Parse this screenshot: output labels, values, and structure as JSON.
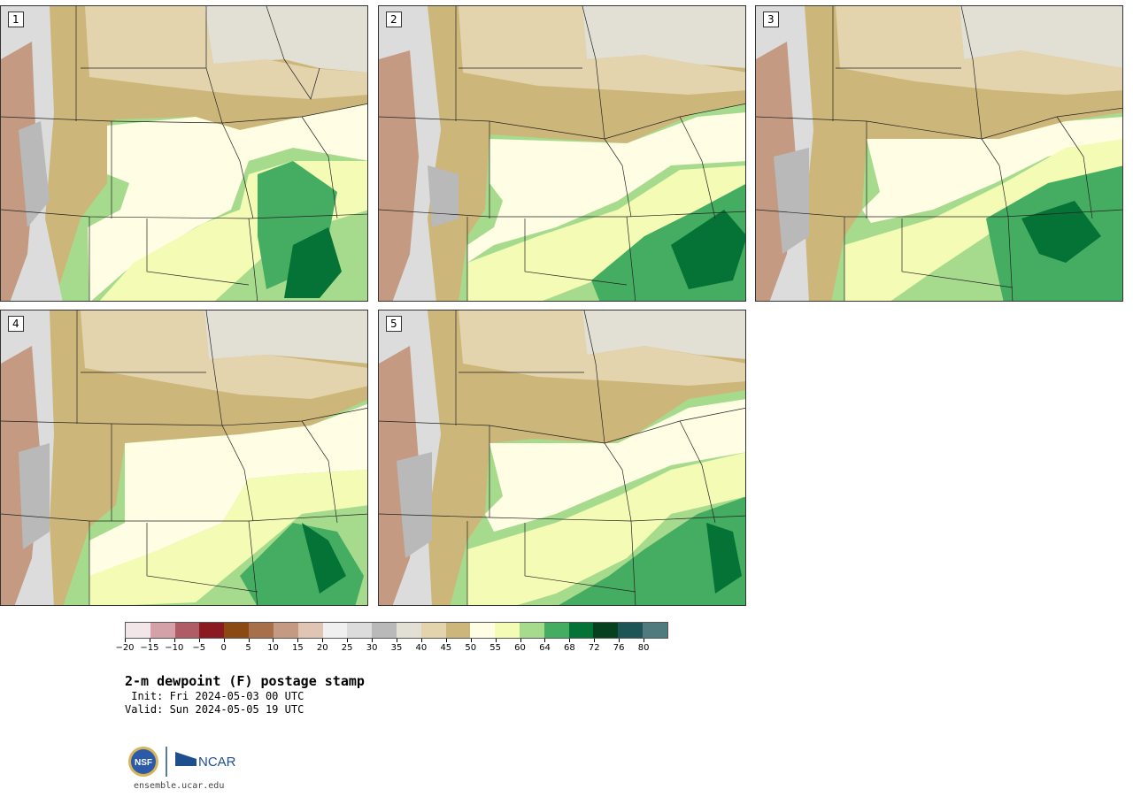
{
  "panels": [
    {
      "label": "1"
    },
    {
      "label": "2"
    },
    {
      "label": "3"
    },
    {
      "label": "4"
    },
    {
      "label": "5"
    }
  ],
  "colorbar": {
    "colors": [
      "#f3e6e9",
      "#d4a1a8",
      "#b05c66",
      "#8b1a23",
      "#8b4a14",
      "#a8704a",
      "#c49a82",
      "#e0c5b4",
      "#f0f0f0",
      "#dcdcdc",
      "#b9b9b9",
      "#e2e0d5",
      "#e3d4ae",
      "#cdb679",
      "#fffde3",
      "#f4fbb5",
      "#a6db8d",
      "#45ad61",
      "#057236",
      "#06401f",
      "#1d5456",
      "#4f7b7e"
    ],
    "tick_labels": [
      "−20",
      "−15",
      "−10",
      "−5",
      "0",
      "5",
      "10",
      "15",
      "20",
      "25",
      "30",
      "35",
      "40",
      "45",
      "50",
      "55",
      "60",
      "64",
      "68",
      "72",
      "76",
      "80"
    ]
  },
  "title": "2-m dewpoint (F) postage stamp",
  "init": " Init: Fri 2024-05-03 00 UTC",
  "valid": "Valid: Sun 2024-05-05 19 UTC",
  "logos": {
    "nsf": "NSF",
    "ncar": "NCAR"
  },
  "site": "ensemble.ucar.edu"
}
